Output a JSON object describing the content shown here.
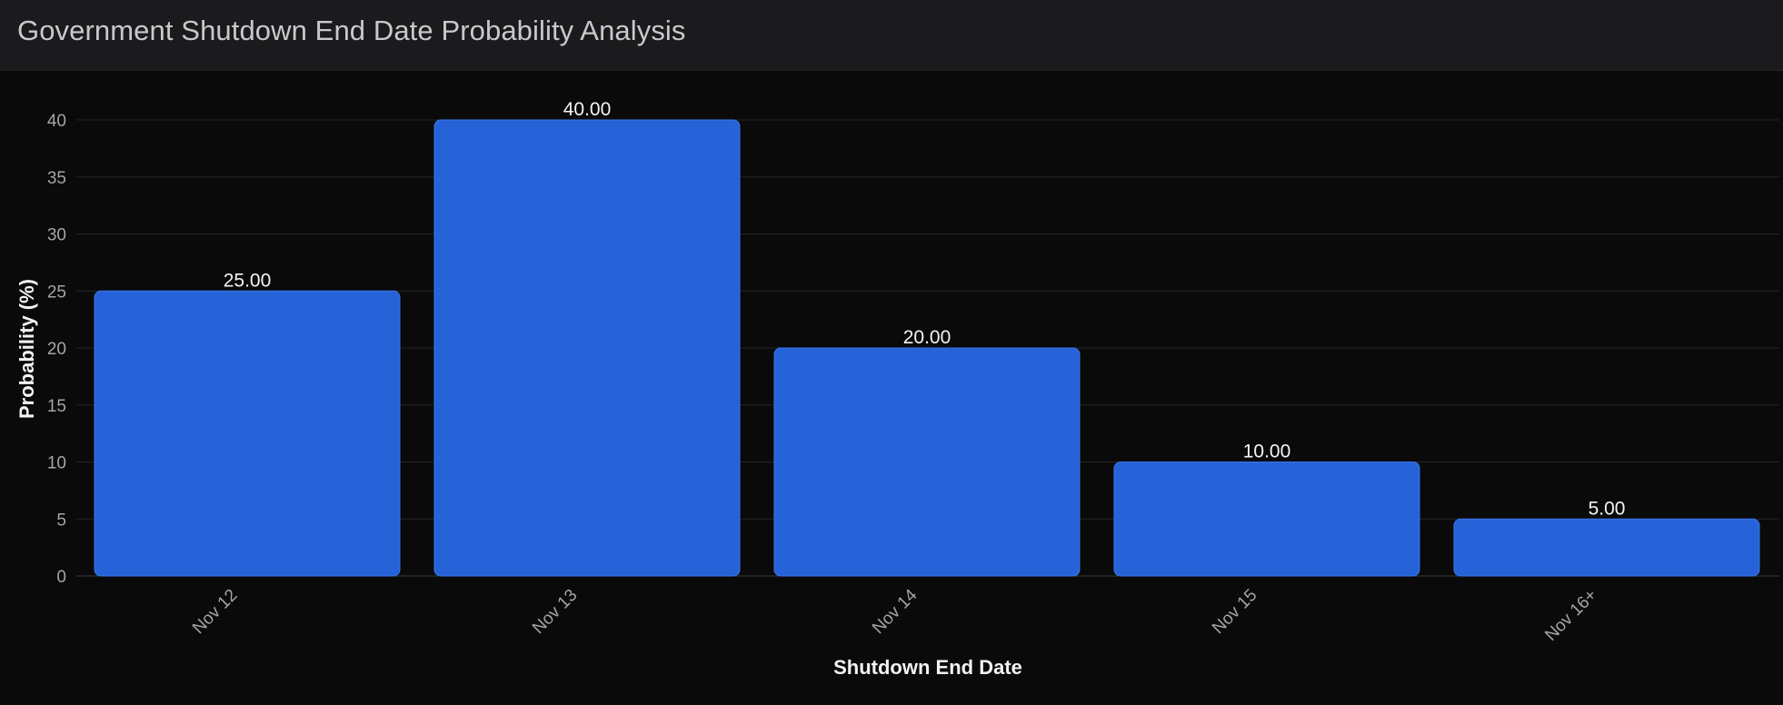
{
  "header": {
    "title": "Government Shutdown End Date Probability Analysis"
  },
  "colors": {
    "background": "#0a0a0a",
    "header_bg": "#1b1b1d",
    "bar": "#2763d8",
    "gridline": "#242426"
  },
  "chart_data": {
    "type": "bar",
    "categories": [
      "Nov 12",
      "Nov 13",
      "Nov 14",
      "Nov 15",
      "Nov 16+"
    ],
    "values": [
      25,
      40,
      20,
      10,
      5
    ],
    "data_labels": [
      "25.00",
      "40.00",
      "20.00",
      "10.00",
      "5.00"
    ],
    "xlabel": "Shutdown End Date",
    "ylabel": "Probability (%)",
    "ylim": [
      0,
      40
    ],
    "yticks": [
      0,
      5,
      10,
      15,
      20,
      25,
      30,
      35,
      40
    ],
    "grid": true,
    "legend": "none"
  }
}
